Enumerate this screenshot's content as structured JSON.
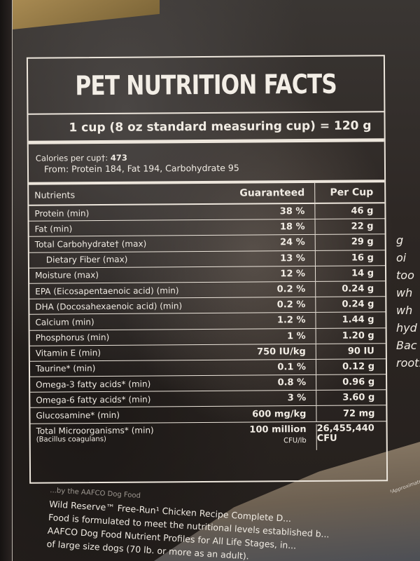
{
  "label": {
    "title": "PET NUTRITION FACTS",
    "serving_size": "1 cup (8 oz standard measuring cup) = 120 g",
    "calories": {
      "label": "Calories per cup†:",
      "value": "473",
      "breakdown": "From: Protein 184, Fat 194, Carbohydrate 95"
    },
    "table": {
      "headers": {
        "nutrient": "Nutrients",
        "guaranteed": "Guaranteed",
        "per_cup": "Per Cup"
      },
      "rows": [
        {
          "nutrient": "Protein (min)",
          "guaranteed": "38 %",
          "per_cup": "46 g"
        },
        {
          "nutrient": "Fat (min)",
          "guaranteed": "18 %",
          "per_cup": "22 g"
        },
        {
          "nutrient": "Total Carbohydrate† (max)",
          "guaranteed": "24 %",
          "per_cup": "29 g"
        },
        {
          "nutrient": "Dietary Fiber (max)",
          "guaranteed": "13 %",
          "per_cup": "16 g"
        },
        {
          "nutrient": "Moisture (max)",
          "guaranteed": "12 %",
          "per_cup": "14 g"
        },
        {
          "nutrient": "EPA (Eicosapentaenoic acid) (min)",
          "guaranteed": "0.2 %",
          "per_cup": "0.24 g"
        },
        {
          "nutrient": "DHA (Docosahexaenoic acid) (min)",
          "guaranteed": "0.2 %",
          "per_cup": "0.24 g"
        },
        {
          "nutrient": "Calcium (min)",
          "guaranteed": "1.2 %",
          "per_cup": "1.44 g"
        },
        {
          "nutrient": "Phosphorus (min)",
          "guaranteed": "1 %",
          "per_cup": "1.20 g"
        },
        {
          "nutrient": "Vitamin E (min)",
          "guaranteed": "750 IU/kg",
          "per_cup": "90 IU"
        },
        {
          "nutrient": "Taurine* (min)",
          "guaranteed": "0.1 %",
          "per_cup": "0.12 g"
        },
        {
          "nutrient": "Omega-3 fatty acids* (min)",
          "guaranteed": "0.8 %",
          "per_cup": "0.96 g"
        },
        {
          "nutrient": "Omega-6 fatty acids* (min)",
          "guaranteed": "3 %",
          "per_cup": "3.60 g"
        },
        {
          "nutrient": "Glucosamine* (min)",
          "guaranteed": "600 mg/kg",
          "per_cup": "72 mg"
        }
      ],
      "last_row": {
        "nutrient": "Total Microorganisms* (min)",
        "nutrient_sub": "(Bacillus coagulans)",
        "guaranteed": "100 million",
        "guaranteed_unit": "CFU/lb",
        "per_cup": "26,455,440",
        "per_cup_unit": "CFU"
      }
    },
    "footnote": {
      "partial_line": "...by the AAFCO Dog Food",
      "lines": [
        "Wild Reserve™ Free-Run¹ Chicken Recipe Complete D...",
        "Food is formulated to meet the nutritional levels established b...",
        "AAFCO Dog Food Nutrient Profiles for All Life Stages, in...",
        "of large size dogs (70 lb. or more as an adult)."
      ]
    }
  },
  "side_panel": {
    "fragments": [
      "g",
      "oi",
      "too",
      "wh",
      "wh",
      "hyd",
      "Bac",
      "root."
    ],
    "tiny_text": "³Approximate"
  }
}
